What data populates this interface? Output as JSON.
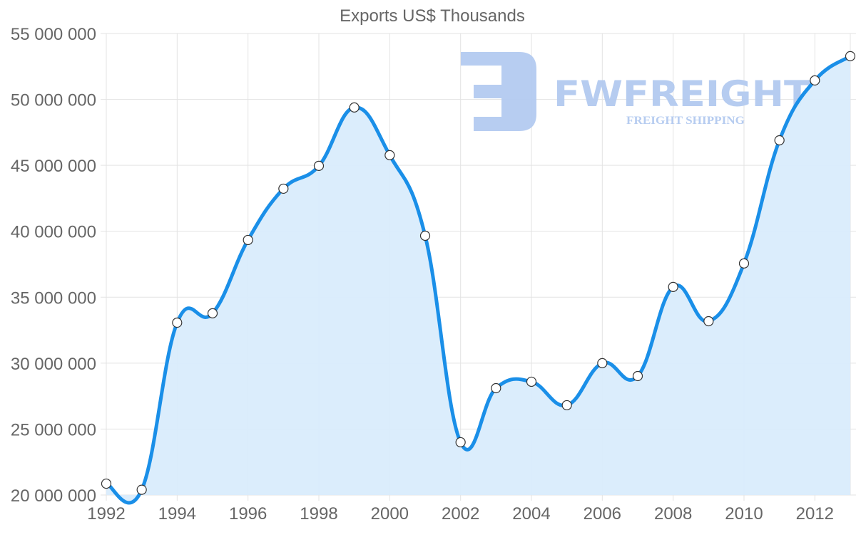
{
  "chart_data": {
    "type": "line",
    "title": "Exports US$ Thousands",
    "xlabel": "",
    "ylabel": "",
    "x": [
      1992,
      1993,
      1994,
      1995,
      1996,
      1997,
      1998,
      1999,
      2000,
      2001,
      2002,
      2003,
      2004,
      2005,
      2006,
      2007,
      2008,
      2009,
      2010,
      2011,
      2012,
      2013
    ],
    "series": [
      {
        "name": "Exports US$ Thousands",
        "values": [
          20860000,
          20400000,
          33070000,
          33780000,
          39340000,
          43230000,
          44960000,
          49390000,
          45770000,
          39660000,
          24000000,
          28100000,
          28590000,
          26810000,
          30000000,
          29020000,
          35780000,
          33180000,
          37560000,
          46900000,
          51440000,
          53280000
        ]
      }
    ],
    "ylim": [
      20000000,
      55000000
    ],
    "xlim": [
      1992,
      2013
    ],
    "y_ticks": [
      "20 000 000",
      "25 000 000",
      "30 000 000",
      "35 000 000",
      "40 000 000",
      "45 000 000",
      "50 000 000",
      "55 000 000"
    ],
    "x_ticks": [
      "1992",
      "1994",
      "1996",
      "1998",
      "2000",
      "2002",
      "2004",
      "2006",
      "2008",
      "2010",
      "2012"
    ],
    "grid": true,
    "filled_area": true,
    "legend": null,
    "colors": {
      "line": "#1a8fe8",
      "fill": "#d9ecfc",
      "point_fill": "#ffffff",
      "point_stroke": "#333333",
      "grid": "#e3e3e3",
      "text": "#666666"
    }
  },
  "watermark": {
    "brand": "FWFREIGHT",
    "tagline": "FREIGHT SHIPPING",
    "color": "#b3caf0"
  }
}
